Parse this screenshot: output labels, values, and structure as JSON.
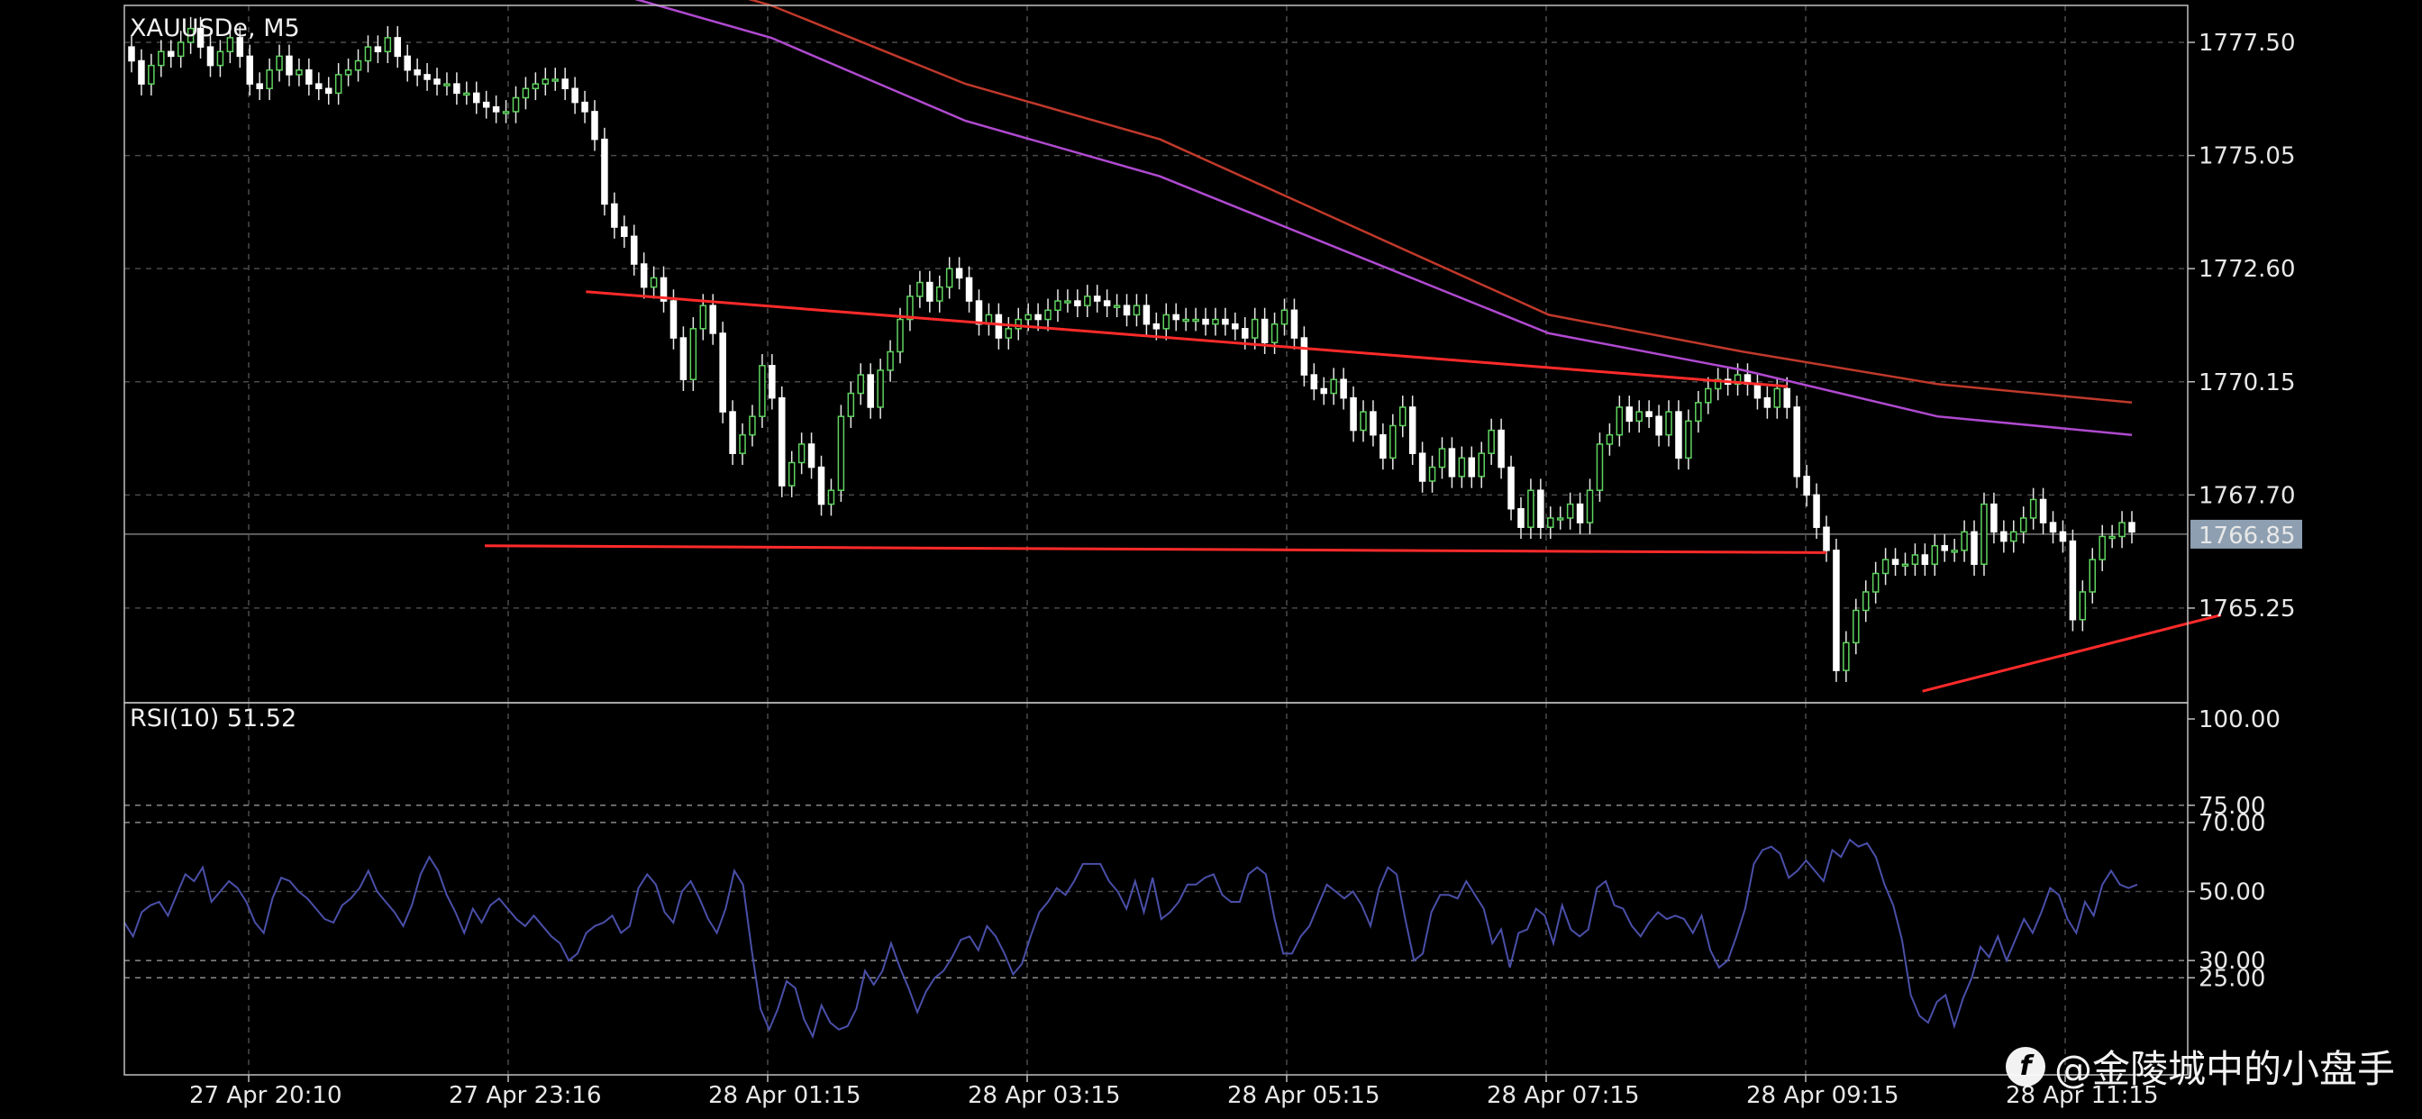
{
  "chart_data": [
    {
      "type": "candlestick",
      "title": "XAUUSDe, M5",
      "symbol": "XAUUSDe",
      "timeframe": "M5",
      "current_price": "1766.85",
      "ylim": [
        1763.2,
        1778.3
      ],
      "y_ticks": [
        {
          "value": 1777.5,
          "label": "1777.50"
        },
        {
          "value": 1775.05,
          "label": "1775.05"
        },
        {
          "value": 1772.6,
          "label": "1772.60"
        },
        {
          "value": 1770.15,
          "label": "1770.15"
        },
        {
          "value": 1767.7,
          "label": "1767.70"
        },
        {
          "value": 1765.25,
          "label": "1765.25"
        }
      ],
      "x_ticks": [
        "27 Apr 20:10",
        "27 Apr 23:16",
        "28 Apr 01:15",
        "28 Apr 03:15",
        "28 Apr 05:15",
        "28 Apr 07:15",
        "28 Apr 09:15",
        "28 Apr 11:15"
      ],
      "candles_close": [
        1777.1,
        1776.6,
        1777.0,
        1777.3,
        1777.2,
        1777.5,
        1777.8,
        1777.4,
        1777.0,
        1777.3,
        1777.6,
        1777.2,
        1776.6,
        1776.5,
        1776.9,
        1777.2,
        1776.8,
        1776.9,
        1776.6,
        1776.5,
        1776.4,
        1776.8,
        1776.9,
        1777.1,
        1777.4,
        1777.3,
        1777.6,
        1777.2,
        1776.9,
        1776.8,
        1776.7,
        1776.6,
        1776.6,
        1776.4,
        1776.4,
        1776.2,
        1776.1,
        1776.0,
        1776.0,
        1776.3,
        1776.5,
        1776.6,
        1776.7,
        1776.7,
        1776.5,
        1776.2,
        1776.0,
        1775.4,
        1774.0,
        1773.5,
        1773.3,
        1772.7,
        1772.2,
        1772.4,
        1771.9,
        1771.1,
        1770.2,
        1771.3,
        1771.8,
        1771.2,
        1769.5,
        1768.6,
        1769.0,
        1769.4,
        1770.5,
        1769.8,
        1767.9,
        1768.4,
        1768.8,
        1768.3,
        1767.5,
        1767.8,
        1769.4,
        1769.9,
        1770.3,
        1769.6,
        1770.4,
        1770.8,
        1771.5,
        1772.0,
        1772.3,
        1771.9,
        1772.2,
        1772.6,
        1772.4,
        1771.9,
        1771.4,
        1771.6,
        1771.1,
        1771.3,
        1771.5,
        1771.6,
        1771.5,
        1771.7,
        1771.9,
        1771.9,
        1771.8,
        1772.0,
        1771.9,
        1771.8,
        1771.8,
        1771.6,
        1771.8,
        1771.4,
        1771.3,
        1771.6,
        1771.5,
        1771.5,
        1771.5,
        1771.4,
        1771.5,
        1771.4,
        1771.3,
        1771.1,
        1771.5,
        1771.0,
        1771.4,
        1771.7,
        1771.1,
        1770.3,
        1770.0,
        1769.9,
        1770.2,
        1769.8,
        1769.1,
        1769.5,
        1769.0,
        1768.5,
        1769.2,
        1769.6,
        1768.6,
        1768.0,
        1768.3,
        1768.7,
        1768.1,
        1768.5,
        1768.1,
        1768.6,
        1769.1,
        1768.3,
        1767.4,
        1767.0,
        1767.8,
        1767.0,
        1767.2,
        1767.2,
        1767.5,
        1767.1,
        1767.8,
        1768.8,
        1769.0,
        1769.6,
        1769.3,
        1769.5,
        1769.4,
        1769.0,
        1769.5,
        1768.5,
        1769.3,
        1769.7,
        1770.0,
        1770.2,
        1770.1,
        1770.3,
        1770.1,
        1769.8,
        1769.6,
        1770.0,
        1769.6,
        1768.1,
        1767.7,
        1767.0,
        1766.5,
        1763.9,
        1764.5,
        1765.2,
        1765.6,
        1766.0,
        1766.3,
        1766.2,
        1766.2,
        1766.4,
        1766.2,
        1766.6,
        1766.5,
        1766.5,
        1766.9,
        1766.2,
        1767.5,
        1766.9,
        1766.7,
        1766.9,
        1767.2,
        1767.6,
        1767.1,
        1766.9,
        1766.7,
        1765.0,
        1765.6,
        1766.3,
        1766.8,
        1766.8,
        1767.1,
        1766.9
      ],
      "moving_averages": [
        {
          "name": "MA-fast",
          "color": "#b04ad0",
          "values": [
            1778.8,
            1777.6,
            1775.8,
            1774.6,
            1772.9,
            1771.2,
            1770.4,
            1769.4,
            1769.0
          ]
        },
        {
          "name": "MA-slow",
          "color": "#c0392b",
          "values": [
            1779.5,
            1778.3,
            1776.6,
            1775.4,
            1773.5,
            1771.6,
            1770.8,
            1770.1,
            1769.7
          ]
        }
      ],
      "trendlines": [
        {
          "name": "descending-resistance",
          "color": "#ff2a2a",
          "from": [
            1.3,
            1772.1
          ],
          "to": [
            5.93,
            1770.05
          ]
        },
        {
          "name": "horizontal-support",
          "color": "#ff2a2a",
          "from": [
            0.91,
            1766.6
          ],
          "to": [
            6.08,
            1766.45
          ]
        },
        {
          "name": "ascending-support",
          "color": "#ff2a2a",
          "from": [
            6.45,
            1763.45
          ],
          "to": [
            7.6,
            1765.1
          ]
        }
      ],
      "grid": true
    },
    {
      "type": "line",
      "title": "RSI(10) 51.52",
      "indicator": "RSI(10)",
      "current_value": "51.52",
      "ylim": [
        0,
        100
      ],
      "y_ticks": [
        {
          "value": 100,
          "label": "100.00"
        },
        {
          "value": 75,
          "label": "75.00"
        },
        {
          "value": 70,
          "label": "70.00"
        },
        {
          "value": 50,
          "label": "50.00"
        },
        {
          "value": 30,
          "label": "30.00"
        },
        {
          "value": 25,
          "label": "25.00"
        }
      ],
      "levels": [
        75,
        70,
        30,
        25
      ],
      "line_color": "#4a4fa8",
      "values": [
        41,
        37,
        44,
        46,
        47,
        43,
        49,
        55,
        53,
        57,
        47,
        50,
        53,
        51,
        47,
        41,
        38,
        48,
        54,
        53,
        50,
        48,
        45,
        42,
        41,
        46,
        48,
        51,
        56,
        50,
        47,
        44,
        40,
        46,
        55,
        60,
        56,
        49,
        44,
        38,
        45,
        41,
        46,
        48,
        45,
        42,
        40,
        43,
        40,
        37,
        35,
        30,
        32,
        38,
        40,
        41,
        43,
        38,
        40,
        51,
        55,
        52,
        44,
        41,
        50,
        53,
        48,
        42,
        38,
        45,
        56,
        52,
        33,
        16,
        10,
        16,
        24,
        22,
        13,
        8,
        17,
        12,
        10,
        11,
        16,
        27,
        23,
        27,
        35,
        28,
        22,
        15,
        21,
        25,
        27,
        31,
        36,
        37,
        33,
        40,
        37,
        32,
        26,
        29,
        37,
        44,
        47,
        51,
        49,
        53,
        58,
        58,
        58,
        53,
        50,
        45,
        53,
        44,
        54,
        42,
        44,
        47,
        52,
        52,
        54,
        55,
        49,
        47,
        47,
        55,
        57,
        55,
        42,
        32,
        32,
        37,
        40,
        46,
        52,
        50,
        48,
        50,
        46,
        40,
        51,
        57,
        55,
        42,
        30,
        32,
        44,
        49,
        49,
        48,
        53,
        49,
        45,
        35,
        39,
        28,
        38,
        39,
        45,
        43,
        35,
        46,
        39,
        37,
        39,
        51,
        53,
        46,
        45,
        40,
        37,
        41,
        44,
        42,
        43,
        42,
        38,
        43,
        33,
        28,
        30,
        37,
        45,
        58,
        62,
        63,
        61,
        54,
        56,
        59,
        56,
        53,
        62,
        60,
        65,
        63,
        64,
        60,
        52,
        46,
        36,
        20,
        14,
        12,
        18,
        20,
        11,
        19,
        25,
        34,
        31,
        37,
        30,
        36,
        42,
        38,
        44,
        51,
        49,
        42,
        38,
        47,
        43,
        52,
        56,
        52,
        51,
        52
      ],
      "grid": true
    }
  ],
  "watermark": {
    "logo_char": "f",
    "text": "@金陵城中的小盘手"
  }
}
